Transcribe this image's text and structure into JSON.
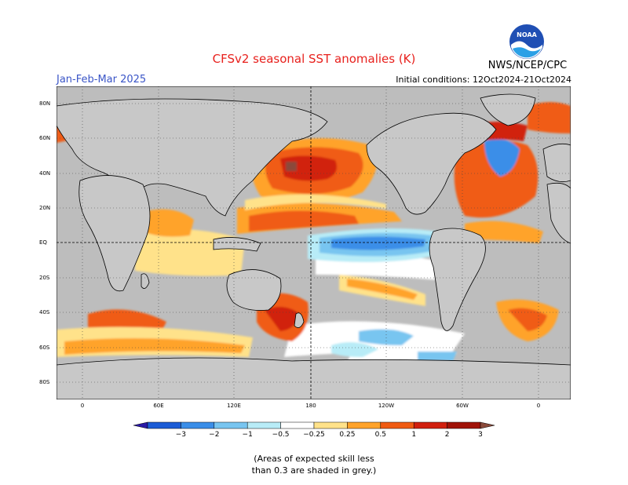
{
  "header": {
    "title": "CFSv2 seasonal SST anomalies (K)",
    "season": "Jan-Feb-Mar 2025",
    "initial_conditions": "Initial conditions: 12Oct2024-21Oct2024",
    "agency": "NWS/NCEP/CPC",
    "logo_text": "NOAA"
  },
  "map": {
    "lat_labels": [
      "80N",
      "60N",
      "40N",
      "20N",
      "EQ",
      "20S",
      "40S",
      "60S",
      "80S"
    ],
    "lon_labels": [
      "0",
      "60E",
      "120E",
      "180",
      "120W",
      "60W",
      "0"
    ],
    "colors": {
      "ocean_grey": "#bdbdbd",
      "land": "#c8c8c8",
      "neutral": "#ffffff",
      "pos_025": "#ffe28a",
      "pos_05": "#ffa32b",
      "pos_1": "#f05b12",
      "pos_2": "#d1200f",
      "pos_3": "#a01208",
      "neg_025": "#b8ecf7",
      "neg_05": "#78c5f0",
      "neg_1": "#3a8ee8",
      "neg_2": "#1c5cd6",
      "neg_3": "#2b1aa6"
    }
  },
  "colorbar": {
    "labels": [
      "−3",
      "−2",
      "−1",
      "−0.5",
      "−0.25",
      "0.25",
      "0.5",
      "1",
      "2",
      "3"
    ],
    "colors": [
      "#2b1aa6",
      "#1c5cd6",
      "#3a8ee8",
      "#78c5f0",
      "#b8ecf7",
      "#ffffff",
      "#ffe28a",
      "#ffa32b",
      "#f05b12",
      "#d1200f",
      "#a01208",
      "#8a4a3a"
    ]
  },
  "note": {
    "line1": "(Areas of expected skill less",
    "line2": "than 0.3 are shaded in grey.)"
  }
}
